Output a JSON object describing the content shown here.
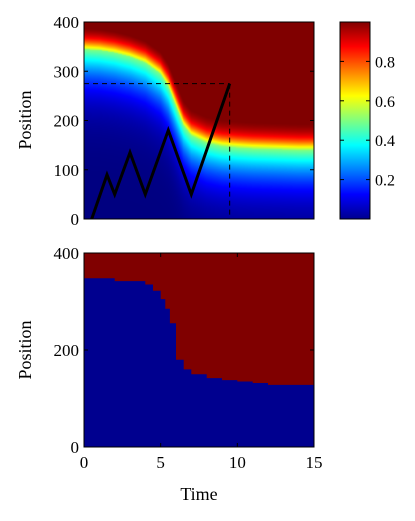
{
  "chart_data": [
    {
      "type": "heatmap",
      "title": "",
      "xlabel": "",
      "ylabel": "Position",
      "xlim": [
        0,
        15
      ],
      "ylim": [
        0,
        400
      ],
      "yticks": [
        "0",
        "100",
        "200",
        "300",
        "400"
      ],
      "colormap": "jet",
      "value_range": [
        0,
        1
      ],
      "colorbar": {
        "ticks": [
          0.2,
          0.4,
          0.6,
          0.8
        ],
        "tick_labels": [
          "0.2",
          "0.4",
          "0.6",
          "0.8"
        ]
      },
      "boundary": {
        "time": [
          0,
          1,
          2,
          3,
          4,
          5,
          5.5,
          6,
          6.5,
          7,
          8,
          9,
          10,
          11,
          12,
          13,
          14,
          15
        ],
        "position": [
          345,
          343,
          338,
          330,
          318,
          295,
          270,
          230,
          190,
          170,
          155,
          148,
          145,
          143,
          142,
          141,
          140,
          140
        ]
      },
      "trajectory": {
        "time": [
          0.5,
          1.5,
          2,
          3,
          4,
          5.5,
          7,
          9.5
        ],
        "position": [
          0,
          90,
          50,
          135,
          50,
          180,
          50,
          275
        ]
      },
      "crosshair": {
        "time": 9.5,
        "position": 275
      }
    },
    {
      "type": "heatmap",
      "title": "",
      "xlabel": "Time",
      "ylabel": "Position",
      "xlim": [
        0,
        15
      ],
      "ylim": [
        0,
        400
      ],
      "xticks": [
        "0",
        "5",
        "10",
        "15"
      ],
      "yticks": [
        "0",
        "200",
        "400"
      ],
      "colors": {
        "below": "#00008f",
        "above": "#800000"
      },
      "boundary": {
        "time": [
          0,
          1.5,
          2,
          3.5,
          4,
          4.5,
          5,
          5.3,
          5.6,
          6,
          6.5,
          7,
          8,
          9,
          10,
          11,
          12,
          13,
          14,
          15
        ],
        "position": [
          348,
          348,
          342,
          342,
          335,
          322,
          305,
          285,
          255,
          180,
          160,
          150,
          142,
          138,
          135,
          132,
          128,
          128,
          128,
          128
        ]
      }
    }
  ],
  "colors": {
    "trajectory": "#000000",
    "crosshair": "#000000"
  }
}
